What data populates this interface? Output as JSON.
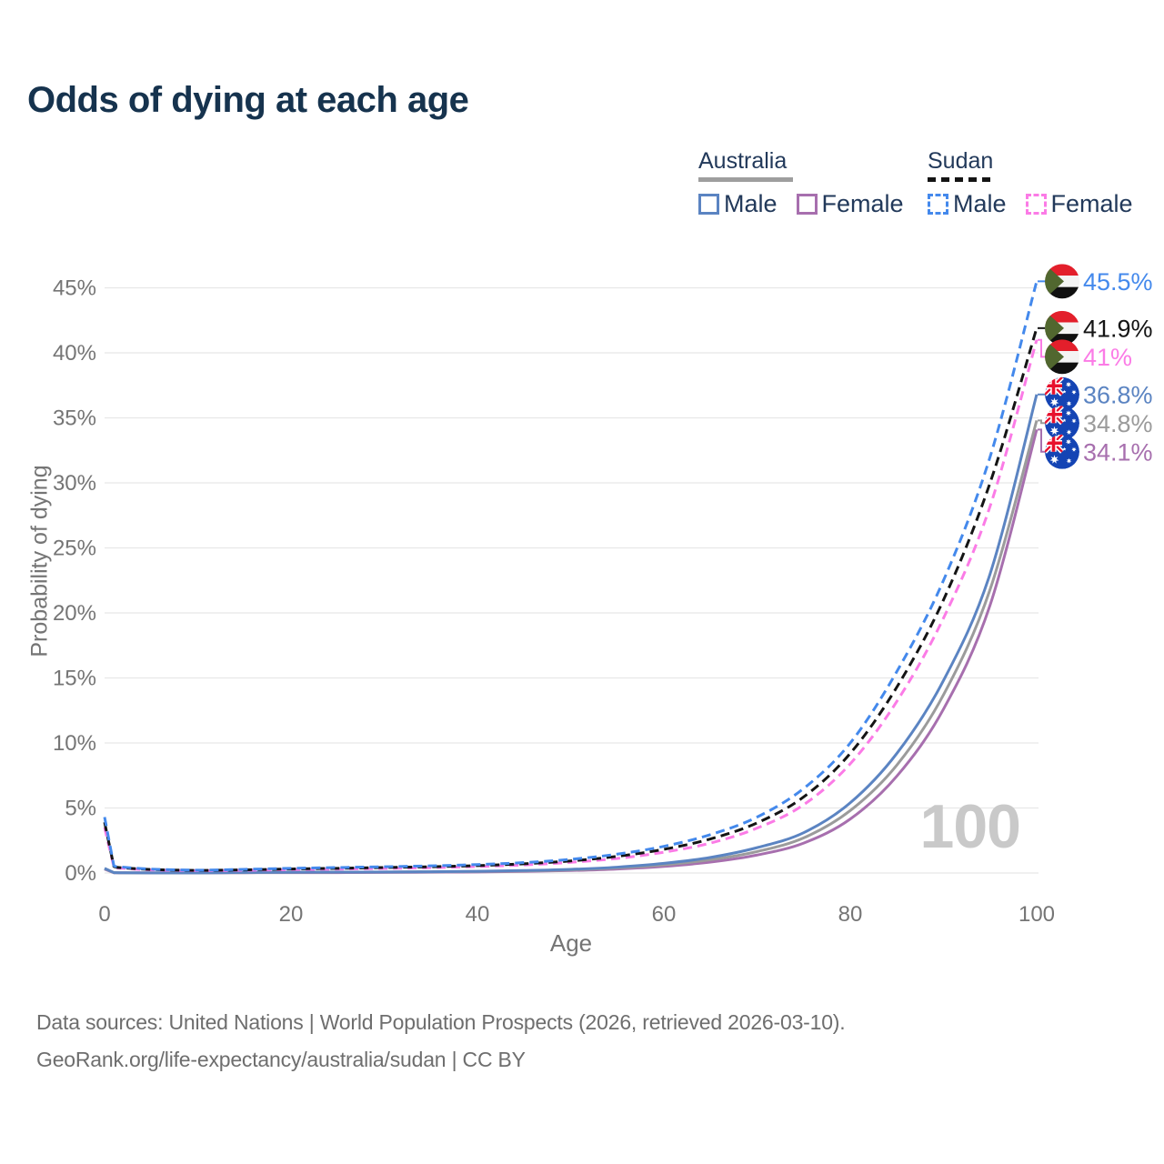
{
  "title": "Odds of dying at each age",
  "legend": {
    "groups": [
      {
        "name": "Australia",
        "line_style": "solid",
        "underline_color": "#9e9e9e",
        "items": [
          {
            "label": "Male",
            "color": "#5b84c2"
          },
          {
            "label": "Female",
            "color": "#a76fae"
          }
        ]
      },
      {
        "name": "Sudan",
        "line_style": "dashed",
        "underline_color": "#141414",
        "items": [
          {
            "label": "Male",
            "color": "#4489ec"
          },
          {
            "label": "Female",
            "color": "#fb7be6"
          }
        ]
      }
    ]
  },
  "chart_data": {
    "type": "line",
    "title": "Odds of dying at each age",
    "xlabel": "Age",
    "ylabel": "Probability of dying",
    "xlim": [
      0,
      100
    ],
    "ylim": [
      0,
      45
    ],
    "grid": "horizontal",
    "watermark": "100",
    "x_ticks": [
      {
        "v": 0,
        "label": "0"
      },
      {
        "v": 20,
        "label": "20"
      },
      {
        "v": 40,
        "label": "40"
      },
      {
        "v": 60,
        "label": "60"
      },
      {
        "v": 80,
        "label": "80"
      },
      {
        "v": 100,
        "label": "100"
      }
    ],
    "y_ticks": [
      {
        "v": 0,
        "label": "0%"
      },
      {
        "v": 5,
        "label": "5%"
      },
      {
        "v": 10,
        "label": "10%"
      },
      {
        "v": 15,
        "label": "15%"
      },
      {
        "v": 20,
        "label": "20%"
      },
      {
        "v": 25,
        "label": "25%"
      },
      {
        "v": 30,
        "label": "30%"
      },
      {
        "v": 35,
        "label": "35%"
      },
      {
        "v": 40,
        "label": "40%"
      },
      {
        "v": 45,
        "label": "45%"
      }
    ],
    "ages": [
      0,
      1,
      2,
      5,
      10,
      15,
      20,
      25,
      30,
      35,
      40,
      45,
      50,
      55,
      60,
      65,
      70,
      75,
      80,
      85,
      90,
      95,
      100
    ],
    "series": [
      {
        "id": "sudan-male",
        "country": "Sudan",
        "sex": "Male",
        "color": "#4489ec",
        "dashed": true,
        "flag": "sudan",
        "end_label": "45.5%",
        "values": [
          4.3,
          0.55,
          0.45,
          0.3,
          0.22,
          0.28,
          0.36,
          0.42,
          0.48,
          0.55,
          0.65,
          0.8,
          1.05,
          1.45,
          2.05,
          2.95,
          4.3,
          6.5,
          10.0,
          15.5,
          22.5,
          32.0,
          45.5
        ]
      },
      {
        "id": "sudan-both-sexes",
        "country": "Sudan",
        "sex": "Both",
        "color": "#141414",
        "dashed": true,
        "flag": "sudan",
        "end_label": "41.9%",
        "values": [
          3.9,
          0.5,
          0.4,
          0.27,
          0.2,
          0.24,
          0.31,
          0.36,
          0.42,
          0.48,
          0.57,
          0.71,
          0.93,
          1.28,
          1.82,
          2.62,
          3.85,
          5.85,
          9.2,
          14.3,
          21.0,
          30.0,
          41.9
        ]
      },
      {
        "id": "sudan-female",
        "country": "Sudan",
        "sex": "Female",
        "color": "#fb7be6",
        "dashed": true,
        "flag": "sudan",
        "end_label": "41%",
        "values": [
          3.5,
          0.45,
          0.36,
          0.24,
          0.18,
          0.21,
          0.26,
          0.3,
          0.35,
          0.41,
          0.5,
          0.62,
          0.82,
          1.12,
          1.6,
          2.3,
          3.45,
          5.25,
          8.4,
          13.2,
          19.6,
          28.2,
          41.0
        ]
      },
      {
        "id": "australia-male",
        "country": "Australia",
        "sex": "Male",
        "color": "#5b84c2",
        "dashed": false,
        "flag": "australia",
        "end_label": "36.8%",
        "values": [
          0.36,
          0.03,
          0.02,
          0.01,
          0.01,
          0.04,
          0.06,
          0.07,
          0.08,
          0.1,
          0.13,
          0.19,
          0.28,
          0.45,
          0.74,
          1.2,
          1.95,
          3.1,
          5.4,
          9.2,
          14.8,
          23.0,
          36.8
        ]
      },
      {
        "id": "australia-both-sexes",
        "country": "Australia",
        "sex": "Both",
        "color": "#9b9b9b",
        "dashed": false,
        "flag": "australia",
        "end_label": "34.8%",
        "values": [
          0.33,
          0.03,
          0.02,
          0.01,
          0.01,
          0.03,
          0.05,
          0.06,
          0.07,
          0.09,
          0.11,
          0.16,
          0.24,
          0.39,
          0.63,
          1.02,
          1.65,
          2.7,
          4.8,
          8.3,
          13.7,
          21.8,
          34.8
        ]
      },
      {
        "id": "australia-female",
        "country": "Australia",
        "sex": "Female",
        "color": "#a76fae",
        "dashed": false,
        "flag": "australia",
        "end_label": "34.1%",
        "values": [
          0.3,
          0.02,
          0.02,
          0.01,
          0.01,
          0.02,
          0.03,
          0.03,
          0.04,
          0.06,
          0.08,
          0.12,
          0.19,
          0.31,
          0.51,
          0.84,
          1.38,
          2.3,
          4.15,
          7.45,
          12.6,
          20.6,
          34.1
        ]
      }
    ]
  },
  "footer": {
    "line1": "Data sources: United Nations | World Population Prospects (2026, retrieved 2026-03-10).",
    "line2": "GeoRank.org/life-expectancy/australia/sudan | CC BY"
  },
  "colors": {
    "title": "#16334e",
    "axis_text": "#757575",
    "gridline": "#e8e8e8",
    "watermark": "#c9c9c9",
    "footer": "#6e6e6e"
  }
}
